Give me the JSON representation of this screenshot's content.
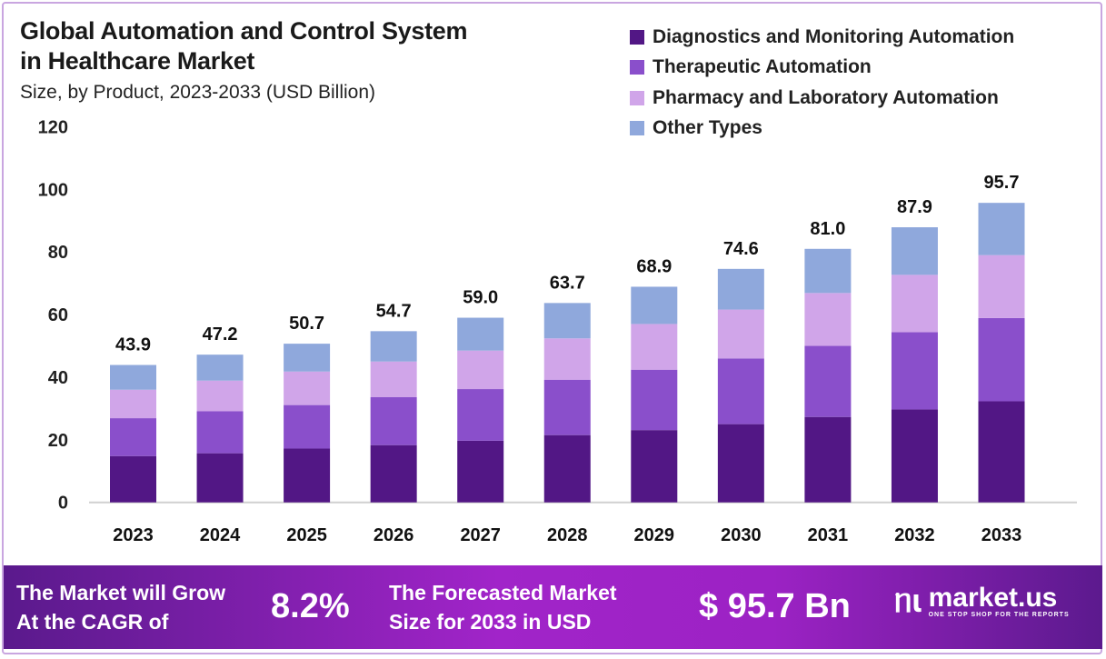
{
  "chart_data": {
    "type": "bar",
    "stacked": true,
    "title": "Global Automation and Control System in Healthcare Market",
    "subtitle": "Size, by Product, 2023-2033 (USD Billion)",
    "xlabel": "",
    "ylabel": "",
    "ylim": [
      0,
      120
    ],
    "yticks": [
      "0",
      "20",
      "40",
      "60",
      "80",
      "100",
      "120"
    ],
    "grid": false,
    "legend_position": "top-right",
    "categories": [
      "2023",
      "2024",
      "2025",
      "2026",
      "2027",
      "2028",
      "2029",
      "2030",
      "2031",
      "2032",
      "2033"
    ],
    "totals": [
      "43.9",
      "47.2",
      "50.7",
      "54.7",
      "59.0",
      "63.7",
      "68.9",
      "74.6",
      "81.0",
      "87.9",
      "95.7"
    ],
    "series": [
      {
        "name": "Diagnostics and Monitoring Automation",
        "color": "#521785",
        "values": [
          14.8,
          15.7,
          17.2,
          18.3,
          19.7,
          21.5,
          23.1,
          25.0,
          27.3,
          29.7,
          32.3
        ]
      },
      {
        "name": "Therapeutic Automation",
        "color": "#8a4fcb",
        "values": [
          12.1,
          13.4,
          13.9,
          15.3,
          16.5,
          17.7,
          19.3,
          21.0,
          22.7,
          24.7,
          26.6
        ]
      },
      {
        "name": "Pharmacy and Laboratory Automation",
        "color": "#d0a5e9",
        "values": [
          9.1,
          9.8,
          10.7,
          11.4,
          12.3,
          13.2,
          14.6,
          15.6,
          16.9,
          18.3,
          20.1
        ]
      },
      {
        "name": "Other Types",
        "color": "#8fa8dc",
        "values": [
          7.9,
          8.3,
          8.9,
          9.7,
          10.5,
          11.3,
          11.9,
          13.0,
          14.1,
          15.2,
          16.7
        ]
      }
    ]
  },
  "header": {
    "title_line1": "Global Automation and Control System",
    "title_line2": "in Healthcare Market"
  },
  "footer": {
    "cagr_text_line1": "The Market will Grow",
    "cagr_text_line2": "At the CAGR of",
    "cagr_value": "8.2%",
    "forecast_text_line1": "The Forecasted Market",
    "forecast_text_line2": "Size for 2033 in USD",
    "forecast_value": "$ 95.7 Bn",
    "brand": "market.us",
    "brand_tagline": "ONE STOP SHOP FOR THE REPORTS"
  }
}
